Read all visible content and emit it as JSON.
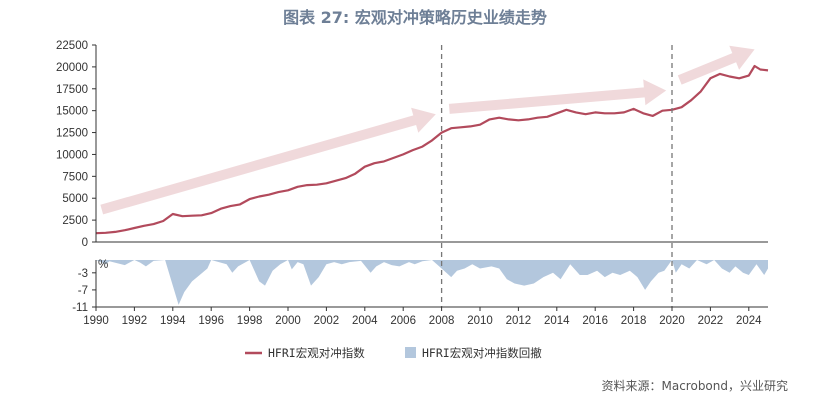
{
  "chart_data": {
    "type": "line",
    "title": "图表 27: 宏观对冲策略历史业绩走势",
    "source": "资料来源：Macrobond，兴业研究",
    "x_ticks": [
      1990,
      1992,
      1994,
      1996,
      1998,
      2000,
      2002,
      2004,
      2006,
      2008,
      2010,
      2012,
      2014,
      2016,
      2018,
      2020,
      2022,
      2024
    ],
    "xlim": [
      1990,
      2025
    ],
    "top_panel": {
      "ylim": [
        0,
        22500
      ],
      "y_ticks": [
        "0",
        "2500",
        "5000",
        "7500",
        "10000",
        "12500",
        "15000",
        "17500",
        "20000",
        "22500"
      ],
      "series": [
        {
          "name": "HFRI宏观对冲指数",
          "color": "#b24a5c",
          "x": [
            1990,
            1990.5,
            1991,
            1991.5,
            1992,
            1992.5,
            1993,
            1993.5,
            1994,
            1994.5,
            1995,
            1995.5,
            1996,
            1996.5,
            1997,
            1997.5,
            1998,
            1998.5,
            1999,
            1999.5,
            2000,
            2000.5,
            2001,
            2001.5,
            2002,
            2002.5,
            2003,
            2003.5,
            2004,
            2004.5,
            2005,
            2005.5,
            2006,
            2006.5,
            2007,
            2007.5,
            2008,
            2008.5,
            2009,
            2009.5,
            2010,
            2010.5,
            2011,
            2011.5,
            2012,
            2012.5,
            2013,
            2013.5,
            2014,
            2014.5,
            2015,
            2015.5,
            2016,
            2016.5,
            2017,
            2017.5,
            2018,
            2018.5,
            2019,
            2019.5,
            2020,
            2020.5,
            2021,
            2021.5,
            2022,
            2022.5,
            2023,
            2023.5,
            2024,
            2024.3,
            2024.6,
            2025
          ],
          "values": [
            1000,
            1050,
            1150,
            1350,
            1600,
            1850,
            2050,
            2400,
            3200,
            2950,
            3000,
            3050,
            3300,
            3800,
            4100,
            4300,
            4900,
            5200,
            5400,
            5700,
            5900,
            6300,
            6500,
            6550,
            6700,
            7000,
            7300,
            7800,
            8600,
            9000,
            9200,
            9600,
            10000,
            10500,
            10900,
            11600,
            12500,
            13000,
            13100,
            13200,
            13400,
            14000,
            14200,
            14000,
            13900,
            14000,
            14200,
            14300,
            14700,
            15100,
            14800,
            14600,
            14800,
            14700,
            14700,
            14800,
            15200,
            14700,
            14400,
            15000,
            15100,
            15400,
            16200,
            17200,
            18700,
            19200,
            18900,
            18700,
            19000,
            20100,
            19700,
            19600
          ]
        }
      ]
    },
    "bottom_panel": {
      "ylim": [
        -11,
        0
      ],
      "y_unit": "%",
      "y_ticks": [
        "-3",
        "-7",
        "-11"
      ],
      "series": [
        {
          "name": "HFRI宏观对冲指数回撤",
          "color": "#b3c7dd",
          "type": "area",
          "x": [
            1990,
            1990.5,
            1990.7,
            1991.5,
            1992,
            1992.3,
            1992.6,
            1993,
            1993.6,
            1994,
            1994.3,
            1994.6,
            1995,
            1995.4,
            1995.8,
            1996,
            1996.8,
            1997.1,
            1997.4,
            1998,
            1998.5,
            1998.8,
            1999.2,
            1999.6,
            2000,
            2000.2,
            2000.5,
            2000.8,
            2001.2,
            2001.6,
            2002,
            2002.4,
            2002.8,
            2003.2,
            2003.8,
            2004.3,
            2004.6,
            2005,
            2005.4,
            2005.8,
            2006.3,
            2006.6,
            2007,
            2007.5,
            2008,
            2008.5,
            2008.8,
            2009.2,
            2009.6,
            2010,
            2010.6,
            2011,
            2011.4,
            2011.8,
            2012.3,
            2012.8,
            2013.3,
            2013.8,
            2014.2,
            2014.7,
            2015.2,
            2015.6,
            2016.1,
            2016.5,
            2016.9,
            2017.3,
            2017.8,
            2018.2,
            2018.6,
            2018.9,
            2019.3,
            2019.6,
            2020,
            2020.2,
            2020.5,
            2020.9,
            2021.3,
            2021.8,
            2022.2,
            2022.6,
            2023,
            2023.3,
            2023.7,
            2024,
            2024.4,
            2024.8,
            2025
          ],
          "values": [
            0,
            -1.0,
            -0.3,
            -1.2,
            0,
            -0.6,
            -1.5,
            -0.2,
            0,
            -6.0,
            -10.5,
            -7.5,
            -5.0,
            -3.5,
            -2.0,
            0,
            -1.0,
            -3.0,
            -1.5,
            0,
            -5.0,
            -6.0,
            -2.5,
            -1.0,
            0,
            -2.2,
            -0.5,
            -1.0,
            -6.0,
            -4.0,
            -1.0,
            -0.5,
            -1.0,
            -0.5,
            -0.2,
            -3.0,
            -1.5,
            -0.5,
            -1.2,
            -1.5,
            -0.5,
            -1.0,
            -0.3,
            0,
            -2.0,
            -4.0,
            -2.5,
            -2.0,
            -1.0,
            -2.0,
            -1.5,
            -2.0,
            -4.5,
            -5.5,
            -6.0,
            -5.5,
            -4.0,
            -3.0,
            -4.5,
            -1.0,
            -3.5,
            -3.5,
            -2.5,
            -4.0,
            -3.0,
            -3.5,
            -2.5,
            -4.0,
            -7.0,
            -5.0,
            -3.0,
            -2.5,
            0,
            -3.0,
            -1.0,
            -2.0,
            0,
            -1.0,
            0,
            -2.0,
            -3.0,
            -1.5,
            -3.0,
            -3.5,
            -1.0,
            -3.5,
            -2.0
          ]
        }
      ]
    },
    "vertical_lines": [
      2008,
      2020
    ],
    "trend_arrows": [
      {
        "from": [
          1990.3,
          3700
        ],
        "to": [
          2007.7,
          14600
        ]
      },
      {
        "from": [
          2008.4,
          15200
        ],
        "to": [
          2019.7,
          17300
        ]
      },
      {
        "from": [
          2020.4,
          18500
        ],
        "to": [
          2024.3,
          22000
        ]
      }
    ],
    "legend": {
      "placement": "bottom-center",
      "entries": [
        "HFRI宏观对冲指数",
        "HFRI宏观对冲指数回撤"
      ]
    },
    "colors": {
      "title": "#6e7f96",
      "line": "#b24a5c",
      "area": "#b3c7dd",
      "arrow": "#f0d9db",
      "axis": "#333333",
      "dashed": "#777777"
    }
  }
}
